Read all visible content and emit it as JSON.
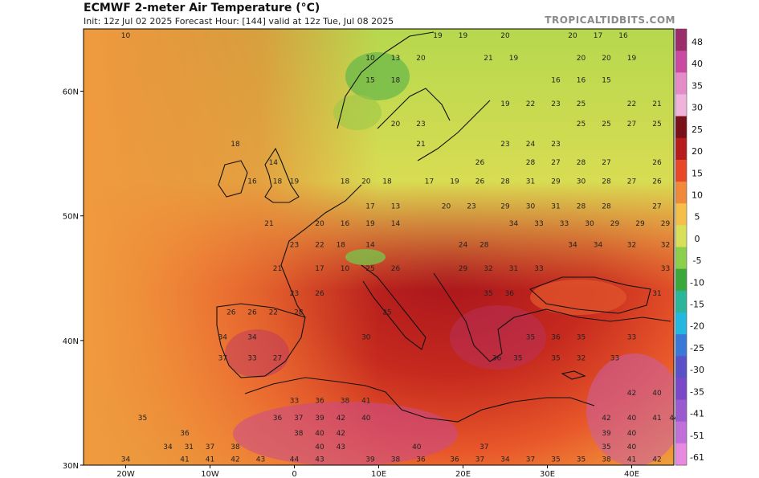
{
  "header": {
    "title": "ECMWF 2-meter Air Temperature (°C)",
    "subtitle": "Init: 12z Jul 02 2025   Forecast Hour: [144]   valid at 12z Tue, Jul 08 2025",
    "credit": "TROPICALTIDBITS.COM"
  },
  "axes": {
    "lat_ticks": [
      "60N",
      "50N",
      "40N",
      "30N"
    ],
    "lon_ticks": [
      "20W",
      "10W",
      "0",
      "10E",
      "20E",
      "30E",
      "40E"
    ]
  },
  "colorbar": {
    "labels": [
      "48",
      "40",
      "35",
      "30",
      "25",
      "20",
      "15",
      "10",
      "5",
      "0",
      "-5",
      "-10",
      "-15",
      "-20",
      "-25",
      "-30",
      "-35",
      "-41",
      "-51",
      "-61"
    ],
    "colors": [
      "#9b2d6b",
      "#c94aa0",
      "#e48bc8",
      "#f0b4dc",
      "#7a1018",
      "#b71c1c",
      "#e8472a",
      "#f08a3a",
      "#f5c04a",
      "#d8e05a",
      "#8ccf4a",
      "#3aa83a",
      "#2bb59a",
      "#22b8e0",
      "#3a78d8",
      "#5a50c8",
      "#7a48c8",
      "#9a5ad0",
      "#c070d8",
      "#e88ae0"
    ]
  },
  "map_values": [
    {
      "t": "10",
      "lon": -20,
      "lat": 64.3
    },
    {
      "t": "19",
      "lon": 17,
      "lat": 64.3
    },
    {
      "t": "19",
      "lon": 20,
      "lat": 64.3
    },
    {
      "t": "20",
      "lon": 25,
      "lat": 64.3
    },
    {
      "t": "20",
      "lon": 33,
      "lat": 64.3
    },
    {
      "t": "17",
      "lon": 36,
      "lat": 64.3
    },
    {
      "t": "16",
      "lon": 39,
      "lat": 64.3
    },
    {
      "t": "10",
      "lon": 9,
      "lat": 62.5
    },
    {
      "t": "13",
      "lon": 12,
      "lat": 62.5
    },
    {
      "t": "20",
      "lon": 15,
      "lat": 62.5
    },
    {
      "t": "21",
      "lon": 23,
      "lat": 62.5
    },
    {
      "t": "19",
      "lon": 26,
      "lat": 62.5
    },
    {
      "t": "20",
      "lon": 34,
      "lat": 62.5
    },
    {
      "t": "20",
      "lon": 37,
      "lat": 62.5
    },
    {
      "t": "19",
      "lon": 40,
      "lat": 62.5
    },
    {
      "t": "15",
      "lon": 9,
      "lat": 60.7
    },
    {
      "t": "18",
      "lon": 12,
      "lat": 60.7
    },
    {
      "t": "16",
      "lon": 31,
      "lat": 60.7
    },
    {
      "t": "16",
      "lon": 34,
      "lat": 60.7
    },
    {
      "t": "15",
      "lon": 37,
      "lat": 60.7
    },
    {
      "t": "19",
      "lon": 25,
      "lat": 58.8
    },
    {
      "t": "22",
      "lon": 28,
      "lat": 58.8
    },
    {
      "t": "23",
      "lon": 31,
      "lat": 58.8
    },
    {
      "t": "25",
      "lon": 34,
      "lat": 58.8
    },
    {
      "t": "22",
      "lon": 40,
      "lat": 58.8
    },
    {
      "t": "21",
      "lon": 43,
      "lat": 58.8
    },
    {
      "t": "20",
      "lon": 12,
      "lat": 57.2
    },
    {
      "t": "23",
      "lon": 15,
      "lat": 57.2
    },
    {
      "t": "25",
      "lon": 34,
      "lat": 57.2
    },
    {
      "t": "25",
      "lon": 37,
      "lat": 57.2
    },
    {
      "t": "27",
      "lon": 40,
      "lat": 57.2
    },
    {
      "t": "25",
      "lon": 43,
      "lat": 57.2
    },
    {
      "t": "18",
      "lon": -7,
      "lat": 55.6
    },
    {
      "t": "21",
      "lon": 15,
      "lat": 55.6
    },
    {
      "t": "23",
      "lon": 25,
      "lat": 55.6
    },
    {
      "t": "24",
      "lon": 28,
      "lat": 55.6
    },
    {
      "t": "23",
      "lon": 31,
      "lat": 55.6
    },
    {
      "t": "14",
      "lon": -2.5,
      "lat": 54.1
    },
    {
      "t": "26",
      "lon": 22,
      "lat": 54.1
    },
    {
      "t": "28",
      "lon": 28,
      "lat": 54.1
    },
    {
      "t": "27",
      "lon": 31,
      "lat": 54.1
    },
    {
      "t": "28",
      "lon": 34,
      "lat": 54.1
    },
    {
      "t": "27",
      "lon": 37,
      "lat": 54.1
    },
    {
      "t": "26",
      "lon": 43,
      "lat": 54.1
    },
    {
      "t": "16",
      "lon": -5,
      "lat": 52.6
    },
    {
      "t": "18",
      "lon": -2,
      "lat": 52.6
    },
    {
      "t": "19",
      "lon": 0,
      "lat": 52.6
    },
    {
      "t": "18",
      "lon": 6,
      "lat": 52.6
    },
    {
      "t": "20",
      "lon": 8.5,
      "lat": 52.6
    },
    {
      "t": "18",
      "lon": 11,
      "lat": 52.6
    },
    {
      "t": "17",
      "lon": 16,
      "lat": 52.6
    },
    {
      "t": "19",
      "lon": 19,
      "lat": 52.6
    },
    {
      "t": "26",
      "lon": 22,
      "lat": 52.6
    },
    {
      "t": "28",
      "lon": 25,
      "lat": 52.6
    },
    {
      "t": "31",
      "lon": 28,
      "lat": 52.6
    },
    {
      "t": "29",
      "lon": 31,
      "lat": 52.6
    },
    {
      "t": "30",
      "lon": 34,
      "lat": 52.6
    },
    {
      "t": "28",
      "lon": 37,
      "lat": 52.6
    },
    {
      "t": "27",
      "lon": 40,
      "lat": 52.6
    },
    {
      "t": "26",
      "lon": 43,
      "lat": 52.6
    },
    {
      "t": "17",
      "lon": 9,
      "lat": 50.6
    },
    {
      "t": "13",
      "lon": 12,
      "lat": 50.6
    },
    {
      "t": "20",
      "lon": 18,
      "lat": 50.6
    },
    {
      "t": "23",
      "lon": 21,
      "lat": 50.6
    },
    {
      "t": "29",
      "lon": 25,
      "lat": 50.6
    },
    {
      "t": "30",
      "lon": 28,
      "lat": 50.6
    },
    {
      "t": "31",
      "lon": 31,
      "lat": 50.6
    },
    {
      "t": "28",
      "lon": 34,
      "lat": 50.6
    },
    {
      "t": "28",
      "lon": 37,
      "lat": 50.6
    },
    {
      "t": "27",
      "lon": 43,
      "lat": 50.6
    },
    {
      "t": "21",
      "lon": -3,
      "lat": 49.2
    },
    {
      "t": "20",
      "lon": 3,
      "lat": 49.2
    },
    {
      "t": "16",
      "lon": 6,
      "lat": 49.2
    },
    {
      "t": "19",
      "lon": 9,
      "lat": 49.2
    },
    {
      "t": "14",
      "lon": 12,
      "lat": 49.2
    },
    {
      "t": "34",
      "lon": 26,
      "lat": 49.2
    },
    {
      "t": "33",
      "lon": 29,
      "lat": 49.2
    },
    {
      "t": "33",
      "lon": 32,
      "lat": 49.2
    },
    {
      "t": "30",
      "lon": 35,
      "lat": 49.2
    },
    {
      "t": "29",
      "lon": 38,
      "lat": 49.2
    },
    {
      "t": "29",
      "lon": 41,
      "lat": 49.2
    },
    {
      "t": "29",
      "lon": 44,
      "lat": 49.2
    },
    {
      "t": "23",
      "lon": 0,
      "lat": 47.5
    },
    {
      "t": "22",
      "lon": 3,
      "lat": 47.5
    },
    {
      "t": "18",
      "lon": 5.5,
      "lat": 47.5
    },
    {
      "t": "14",
      "lon": 9,
      "lat": 47.5
    },
    {
      "t": "24",
      "lon": 20,
      "lat": 47.5
    },
    {
      "t": "28",
      "lon": 22.5,
      "lat": 47.5
    },
    {
      "t": "34",
      "lon": 33,
      "lat": 47.5
    },
    {
      "t": "34",
      "lon": 36,
      "lat": 47.5
    },
    {
      "t": "32",
      "lon": 40,
      "lat": 47.5
    },
    {
      "t": "32",
      "lon": 44,
      "lat": 47.5
    },
    {
      "t": "21",
      "lon": -2,
      "lat": 45.6
    },
    {
      "t": "17",
      "lon": 3,
      "lat": 45.6
    },
    {
      "t": "10",
      "lon": 6,
      "lat": 45.6
    },
    {
      "t": "25",
      "lon": 9,
      "lat": 45.6
    },
    {
      "t": "26",
      "lon": 12,
      "lat": 45.6
    },
    {
      "t": "29",
      "lon": 20,
      "lat": 45.6
    },
    {
      "t": "32",
      "lon": 23,
      "lat": 45.6
    },
    {
      "t": "31",
      "lon": 26,
      "lat": 45.6
    },
    {
      "t": "33",
      "lon": 29,
      "lat": 45.6
    },
    {
      "t": "33",
      "lon": 44,
      "lat": 45.6
    },
    {
      "t": "23",
      "lon": 0,
      "lat": 43.6
    },
    {
      "t": "26",
      "lon": 3,
      "lat": 43.6
    },
    {
      "t": "35",
      "lon": 23,
      "lat": 43.6
    },
    {
      "t": "36",
      "lon": 25.5,
      "lat": 43.6
    },
    {
      "t": "31",
      "lon": 43,
      "lat": 43.6
    },
    {
      "t": "26",
      "lon": -7.5,
      "lat": 42.1
    },
    {
      "t": "26",
      "lon": -5,
      "lat": 42.1
    },
    {
      "t": "22",
      "lon": -2.5,
      "lat": 42.1
    },
    {
      "t": "28",
      "lon": 0.5,
      "lat": 42.1
    },
    {
      "t": "25",
      "lon": 11,
      "lat": 42.1
    },
    {
      "t": "34",
      "lon": -8.5,
      "lat": 40.1
    },
    {
      "t": "34",
      "lon": -5,
      "lat": 40.1
    },
    {
      "t": "30",
      "lon": 8.5,
      "lat": 40.1
    },
    {
      "t": "35",
      "lon": 28,
      "lat": 40.1
    },
    {
      "t": "36",
      "lon": 31,
      "lat": 40.1
    },
    {
      "t": "35",
      "lon": 34,
      "lat": 40.1
    },
    {
      "t": "33",
      "lon": 40,
      "lat": 40.1
    },
    {
      "t": "37",
      "lon": -8.5,
      "lat": 38.4
    },
    {
      "t": "33",
      "lon": -5,
      "lat": 38.4
    },
    {
      "t": "27",
      "lon": -2,
      "lat": 38.4
    },
    {
      "t": "36",
      "lon": 24,
      "lat": 38.4
    },
    {
      "t": "35",
      "lon": 26.5,
      "lat": 38.4
    },
    {
      "t": "35",
      "lon": 31,
      "lat": 38.4
    },
    {
      "t": "32",
      "lon": 34,
      "lat": 38.4
    },
    {
      "t": "33",
      "lon": 38,
      "lat": 38.4
    },
    {
      "t": "42",
      "lon": 40,
      "lat": 35.6
    },
    {
      "t": "40",
      "lon": 43,
      "lat": 35.6
    },
    {
      "t": "33",
      "lon": 0,
      "lat": 35.0
    },
    {
      "t": "36",
      "lon": 3,
      "lat": 35.0
    },
    {
      "t": "38",
      "lon": 6,
      "lat": 35.0
    },
    {
      "t": "41",
      "lon": 8.5,
      "lat": 35.0
    },
    {
      "t": "35",
      "lon": -18,
      "lat": 33.6
    },
    {
      "t": "36",
      "lon": -2,
      "lat": 33.6
    },
    {
      "t": "37",
      "lon": 0.5,
      "lat": 33.6
    },
    {
      "t": "39",
      "lon": 3,
      "lat": 33.6
    },
    {
      "t": "42",
      "lon": 5.5,
      "lat": 33.6
    },
    {
      "t": "40",
      "lon": 8.5,
      "lat": 33.6
    },
    {
      "t": "42",
      "lon": 37,
      "lat": 33.6
    },
    {
      "t": "40",
      "lon": 40,
      "lat": 33.6
    },
    {
      "t": "41",
      "lon": 43,
      "lat": 33.6
    },
    {
      "t": "44",
      "lon": 45,
      "lat": 33.6
    },
    {
      "t": "36",
      "lon": -13,
      "lat": 32.4
    },
    {
      "t": "38",
      "lon": 0.5,
      "lat": 32.4
    },
    {
      "t": "40",
      "lon": 3,
      "lat": 32.4
    },
    {
      "t": "42",
      "lon": 5.5,
      "lat": 32.4
    },
    {
      "t": "39",
      "lon": 37,
      "lat": 32.4
    },
    {
      "t": "40",
      "lon": 40,
      "lat": 32.4
    },
    {
      "t": "34",
      "lon": -15,
      "lat": 31.3
    },
    {
      "t": "31",
      "lon": -12.5,
      "lat": 31.3
    },
    {
      "t": "37",
      "lon": -10,
      "lat": 31.3
    },
    {
      "t": "38",
      "lon": -7,
      "lat": 31.3
    },
    {
      "t": "40",
      "lon": 3,
      "lat": 31.3
    },
    {
      "t": "43",
      "lon": 5.5,
      "lat": 31.3
    },
    {
      "t": "40",
      "lon": 14.5,
      "lat": 31.3
    },
    {
      "t": "37",
      "lon": 22.5,
      "lat": 31.3
    },
    {
      "t": "35",
      "lon": 37,
      "lat": 31.3
    },
    {
      "t": "40",
      "lon": 40,
      "lat": 31.3
    },
    {
      "t": "34",
      "lon": -20,
      "lat": 30.3
    },
    {
      "t": "41",
      "lon": -13,
      "lat": 30.3
    },
    {
      "t": "41",
      "lon": -10,
      "lat": 30.3
    },
    {
      "t": "42",
      "lon": -7,
      "lat": 30.3
    },
    {
      "t": "43",
      "lon": -4,
      "lat": 30.3
    },
    {
      "t": "44",
      "lon": 0,
      "lat": 30.3
    },
    {
      "t": "43",
      "lon": 3,
      "lat": 30.3
    },
    {
      "t": "39",
      "lon": 9,
      "lat": 30.3
    },
    {
      "t": "38",
      "lon": 12,
      "lat": 30.3
    },
    {
      "t": "36",
      "lon": 15,
      "lat": 30.3
    },
    {
      "t": "36",
      "lon": 19,
      "lat": 30.3
    },
    {
      "t": "37",
      "lon": 22,
      "lat": 30.3
    },
    {
      "t": "34",
      "lon": 25,
      "lat": 30.3
    },
    {
      "t": "37",
      "lon": 28,
      "lat": 30.3
    },
    {
      "t": "35",
      "lon": 31,
      "lat": 30.3
    },
    {
      "t": "35",
      "lon": 34,
      "lat": 30.3
    },
    {
      "t": "38",
      "lon": 37,
      "lat": 30.3
    },
    {
      "t": "41",
      "lon": 40,
      "lat": 30.3
    },
    {
      "t": "42",
      "lon": 43,
      "lat": 30.3
    }
  ]
}
